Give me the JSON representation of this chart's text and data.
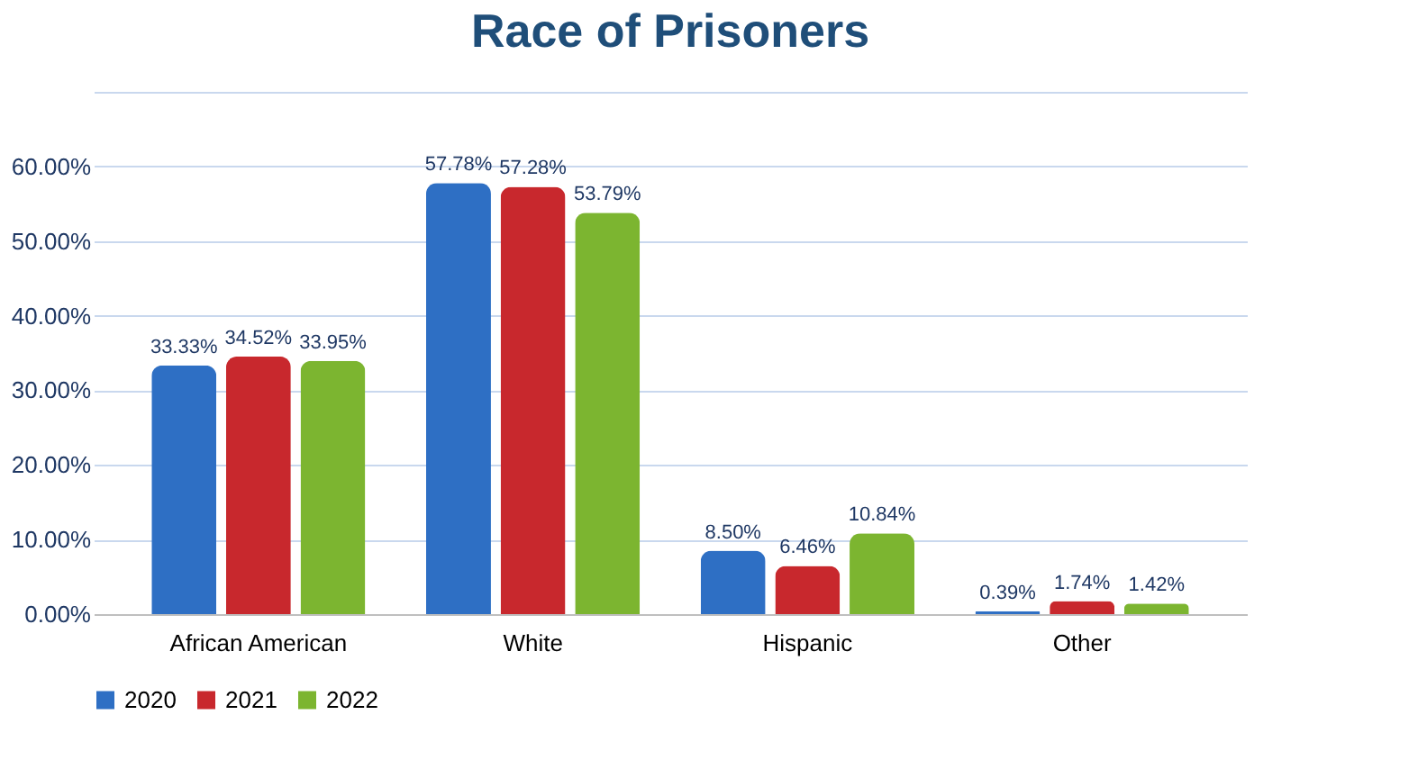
{
  "chart_data": {
    "type": "bar",
    "title": "Race of Prisoners",
    "categories": [
      "African American",
      "White",
      "Hispanic",
      "Other"
    ],
    "series": [
      {
        "name": "2020",
        "color": "#2e6fc4",
        "values": [
          33.33,
          57.78,
          8.5,
          0.39
        ],
        "value_labels": [
          "33.33%",
          "57.78%",
          "8.50%",
          "0.39%"
        ]
      },
      {
        "name": "2021",
        "color": "#c8282d",
        "values": [
          34.52,
          57.28,
          6.46,
          1.74
        ],
        "value_labels": [
          "34.52%",
          "57.28%",
          "6.46%",
          "1.74%"
        ]
      },
      {
        "name": "2022",
        "color": "#7cb530",
        "values": [
          33.95,
          53.79,
          10.84,
          1.42
        ],
        "value_labels": [
          "33.95%",
          "53.79%",
          "10.84%",
          "1.42%"
        ]
      }
    ],
    "ylim": [
      0,
      70
    ],
    "yticks": [
      {
        "value": 0,
        "label": "0.00%"
      },
      {
        "value": 10,
        "label": "10.00%"
      },
      {
        "value": 20,
        "label": "20.00%"
      },
      {
        "value": 30,
        "label": "30.00%"
      },
      {
        "value": 40,
        "label": "40.00%"
      },
      {
        "value": 50,
        "label": "50.00%"
      },
      {
        "value": 60,
        "label": "60.00%"
      },
      {
        "value": 70,
        "label": null
      }
    ],
    "grid": "y",
    "legend": "bottom"
  }
}
